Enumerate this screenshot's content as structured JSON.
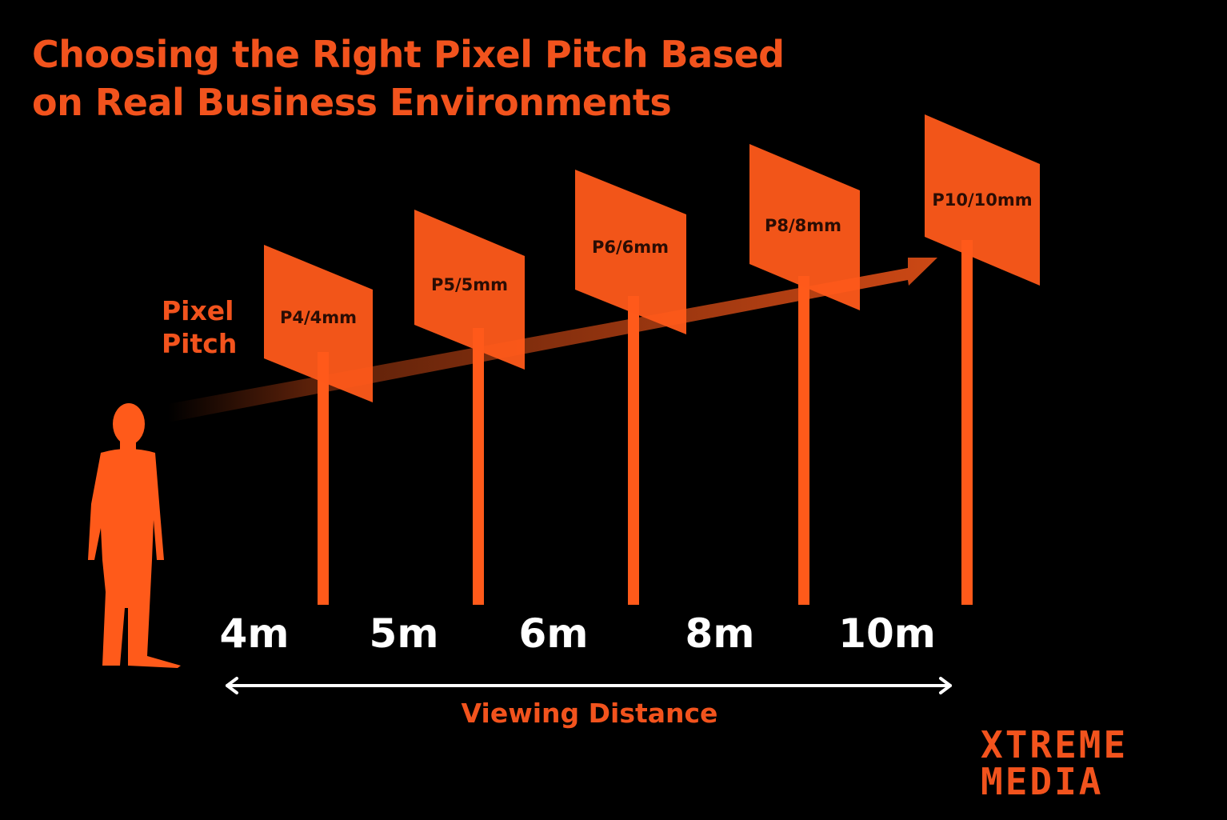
{
  "title": {
    "line1": "Choosing the Right Pixel Pitch Based",
    "line2": "on Real Business Environments"
  },
  "y_axis_label": {
    "line1": "Pixel",
    "line2": "Pitch"
  },
  "x_axis_label": "Viewing Distance",
  "screens": [
    {
      "label": "P4/4mm",
      "distance": "4m"
    },
    {
      "label": "P5/5mm",
      "distance": "5m"
    },
    {
      "label": "P6/6mm",
      "distance": "6m"
    },
    {
      "label": "P8/8mm",
      "distance": "8m"
    },
    {
      "label": "P10/10mm",
      "distance": "10m"
    }
  ],
  "logo": {
    "line1": "XTREME",
    "line2": "MEDIA"
  },
  "colors": {
    "background": "#000000",
    "accent": "#f2531d",
    "screen": "#ff5a1a",
    "distance_text": "#ffffff"
  },
  "icons": {
    "person": "person-silhouette-icon",
    "axis_arrow": "double-headed-arrow-icon",
    "trend_arrow": "right-arrow-icon"
  }
}
